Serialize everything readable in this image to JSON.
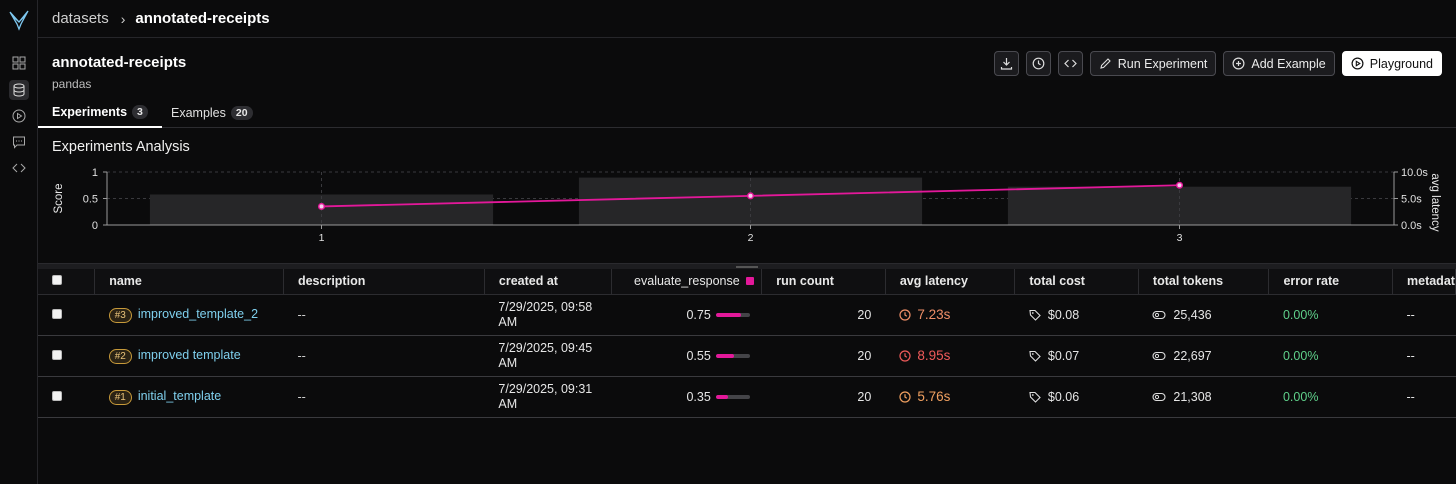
{
  "breadcrumb": {
    "root": "datasets",
    "current": "annotated-receipts"
  },
  "dataset": {
    "title": "annotated-receipts",
    "subtitle": "pandas"
  },
  "actions": {
    "run_experiment": "Run Experiment",
    "add_example": "Add Example",
    "playground": "Playground"
  },
  "tabs": [
    {
      "label": "Experiments",
      "count": "3"
    },
    {
      "label": "Examples",
      "count": "20"
    }
  ],
  "analysis": {
    "title": "Experiments Analysis",
    "chart_data": {
      "type": "bar",
      "categories": [
        "1",
        "2",
        "3"
      ],
      "series": [
        {
          "name": "avg latency",
          "type": "bar",
          "axis": "right",
          "values": [
            5.76,
            8.95,
            7.23
          ]
        },
        {
          "name": "evaluate_response",
          "type": "line",
          "axis": "left",
          "values": [
            0.35,
            0.55,
            0.75
          ]
        }
      ],
      "ylabel": "Score",
      "y2label": "avg latency",
      "ylim": [
        0,
        1
      ],
      "y2lim": [
        0,
        10
      ],
      "y_ticks": [
        "1",
        "0.5",
        "0"
      ],
      "y2_ticks": [
        "10.0s",
        "5.0s",
        "0.0s"
      ],
      "grid": true,
      "line_color": "#e3189a"
    }
  },
  "table": {
    "columns": [
      "name",
      "description",
      "created at",
      "evaluate_response",
      "run count",
      "avg latency",
      "total cost",
      "total tokens",
      "error rate",
      "metadat"
    ],
    "rows": [
      {
        "badge": "#3",
        "name": "improved_template_2",
        "description": "--",
        "created": "7/29/2025, 09:58 AM",
        "score_text": "0.75",
        "score": 0.75,
        "run_count": "20",
        "latency": "7.23s",
        "latency_color": "#f08f68",
        "cost": "$0.08",
        "tokens": "25,436",
        "error_rate": "0.00%",
        "metadata": "--"
      },
      {
        "badge": "#2",
        "name": "improved template",
        "description": "--",
        "created": "7/29/2025, 09:45 AM",
        "score_text": "0.55",
        "score": 0.55,
        "run_count": "20",
        "latency": "8.95s",
        "latency_color": "#ef5a5a",
        "cost": "$0.07",
        "tokens": "22,697",
        "error_rate": "0.00%",
        "metadata": "--"
      },
      {
        "badge": "#1",
        "name": "initial_template",
        "description": "--",
        "created": "7/29/2025, 09:31 AM",
        "score_text": "0.35",
        "score": 0.35,
        "run_count": "20",
        "latency": "5.76s",
        "latency_color": "#f0a060",
        "cost": "$0.06",
        "tokens": "21,308",
        "error_rate": "0.00%",
        "metadata": "--"
      }
    ]
  }
}
